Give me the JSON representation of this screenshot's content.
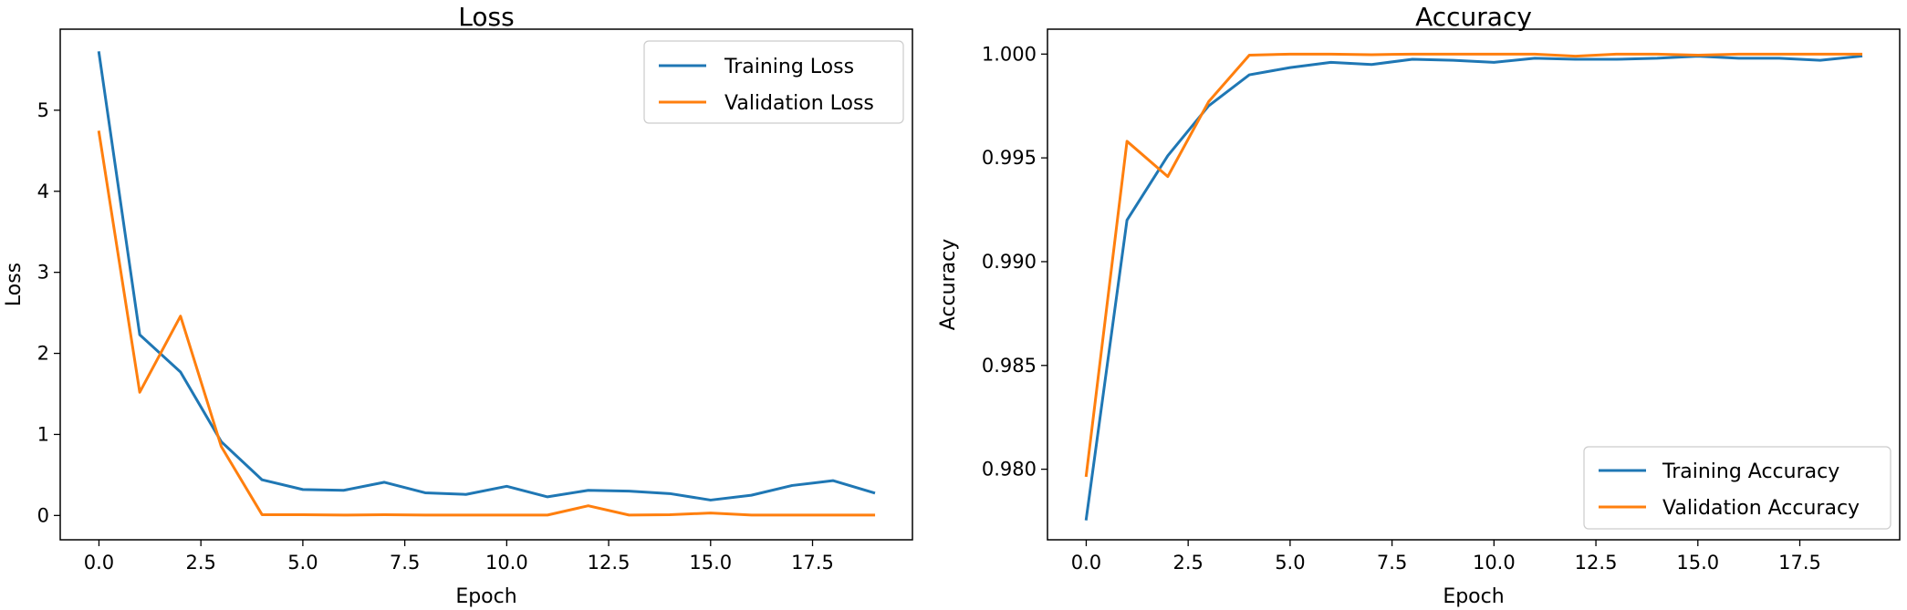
{
  "chart_data": [
    {
      "type": "line",
      "title": "Loss",
      "xlabel": "Epoch",
      "ylabel": "Loss",
      "xlim": [
        -0.95,
        19.95
      ],
      "ylim": [
        -0.3,
        6.0
      ],
      "xticks": [
        0,
        2.5,
        5,
        7.5,
        10,
        12.5,
        15,
        17.5
      ],
      "xtick_labels": [
        "0.0",
        "2.5",
        "5.0",
        "7.5",
        "10.0",
        "12.5",
        "15.0",
        "17.5"
      ],
      "yticks": [
        0,
        1,
        2,
        3,
        4,
        5
      ],
      "ytick_labels": [
        "0",
        "1",
        "2",
        "3",
        "4",
        "5"
      ],
      "legend_position": "top-right",
      "grid": false,
      "x": [
        0,
        1,
        2,
        3,
        4,
        5,
        6,
        7,
        8,
        9,
        10,
        11,
        12,
        13,
        14,
        15,
        16,
        17,
        18,
        19
      ],
      "series": [
        {
          "name": "Training Loss",
          "color": "#1f77b4",
          "values": [
            5.71,
            2.23,
            1.77,
            0.91,
            0.44,
            0.32,
            0.31,
            0.41,
            0.28,
            0.26,
            0.36,
            0.23,
            0.31,
            0.3,
            0.27,
            0.19,
            0.25,
            0.37,
            0.43,
            0.28
          ]
        },
        {
          "name": "Validation Loss",
          "color": "#ff7f0e",
          "values": [
            4.73,
            1.52,
            2.46,
            0.85,
            0.01,
            0.01,
            0.005,
            0.01,
            0.005,
            0.005,
            0.005,
            0.005,
            0.12,
            0.005,
            0.01,
            0.03,
            0.005,
            0.005,
            0.005,
            0.005
          ]
        }
      ]
    },
    {
      "type": "line",
      "title": "Accuracy",
      "xlabel": "Epoch",
      "ylabel": "Accuracy",
      "xlim": [
        -0.95,
        19.95
      ],
      "ylim": [
        0.9766,
        1.0012
      ],
      "xticks": [
        0,
        2.5,
        5,
        7.5,
        10,
        12.5,
        15,
        17.5
      ],
      "xtick_labels": [
        "0.0",
        "2.5",
        "5.0",
        "7.5",
        "10.0",
        "12.5",
        "15.0",
        "17.5"
      ],
      "yticks": [
        0.98,
        0.985,
        0.99,
        0.995,
        1.0
      ],
      "ytick_labels": [
        "0.980",
        "0.985",
        "0.990",
        "0.995",
        "1.000"
      ],
      "legend_position": "bottom-right",
      "grid": false,
      "x": [
        0,
        1,
        2,
        3,
        4,
        5,
        6,
        7,
        8,
        9,
        10,
        11,
        12,
        13,
        14,
        15,
        16,
        17,
        18,
        19
      ],
      "series": [
        {
          "name": "Training Accuracy",
          "color": "#1f77b4",
          "values": [
            0.9776,
            0.992,
            0.9951,
            0.9975,
            0.999,
            0.99935,
            0.9996,
            0.9995,
            0.99975,
            0.9997,
            0.9996,
            0.9998,
            0.99975,
            0.99975,
            0.9998,
            0.9999,
            0.9998,
            0.9998,
            0.9997,
            0.9999
          ]
        },
        {
          "name": "Validation Accuracy",
          "color": "#ff7f0e",
          "values": [
            0.9797,
            0.9958,
            0.9941,
            0.9977,
            0.99995,
            1.0,
            1.0,
            0.99997,
            1.0,
            1.0,
            1.0,
            1.0,
            0.9999,
            1.0,
            1.0,
            0.99995,
            1.0,
            1.0,
            1.0,
            1.0
          ]
        }
      ]
    }
  ]
}
